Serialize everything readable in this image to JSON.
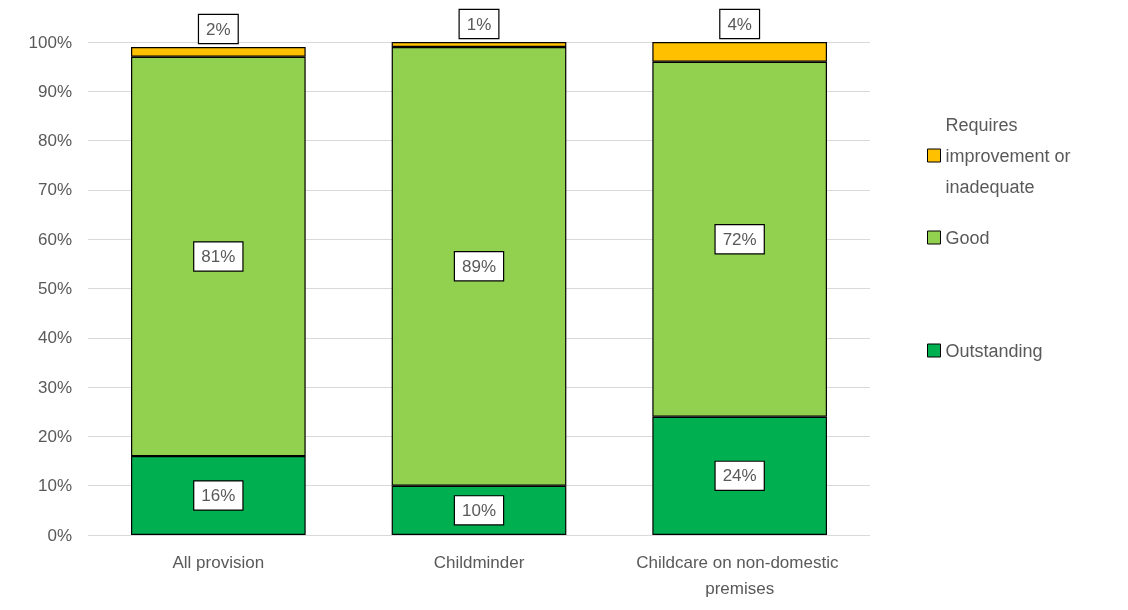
{
  "chart_data": {
    "type": "bar",
    "stacked": true,
    "categories": [
      "All provision",
      "Childminder",
      "Childcare on non-domestic premises"
    ],
    "series": [
      {
        "name": "Outstanding",
        "color": "#00b050",
        "values": [
          16,
          10,
          24
        ],
        "value_labels": [
          "16%",
          "10%",
          "24%"
        ]
      },
      {
        "name": "Good",
        "color": "#92d050",
        "values": [
          81,
          89,
          72
        ],
        "value_labels": [
          "81%",
          "89%",
          "72%"
        ]
      },
      {
        "name": "Requires improvement or inadequate",
        "color": "#ffc000",
        "values": [
          2,
          1,
          4
        ],
        "value_labels": [
          "2%",
          "1%",
          "4%"
        ]
      }
    ],
    "ylim": [
      0,
      100
    ],
    "yticks": [
      {
        "value": 0,
        "label": "0%"
      },
      {
        "value": 10,
        "label": "10%"
      },
      {
        "value": 20,
        "label": "20%"
      },
      {
        "value": 30,
        "label": "30%"
      },
      {
        "value": 40,
        "label": "40%"
      },
      {
        "value": 50,
        "label": "50%"
      },
      {
        "value": 60,
        "label": "60%"
      },
      {
        "value": 70,
        "label": "70%"
      },
      {
        "value": 80,
        "label": "80%"
      },
      {
        "value": 90,
        "label": "90%"
      },
      {
        "value": 100,
        "label": "100%"
      }
    ],
    "grid": "y",
    "legend": "right"
  }
}
